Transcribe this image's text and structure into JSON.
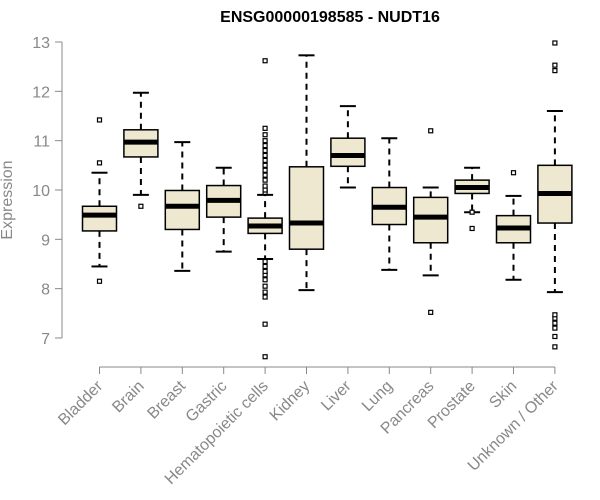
{
  "chart_data": {
    "type": "boxplot",
    "title": "ENSG00000198585 - NUDT16",
    "ylabel": "Expression",
    "xlabel": "",
    "ylim": [
      6.5,
      13
    ],
    "yticks": [
      7,
      8,
      9,
      10,
      11,
      12,
      13
    ],
    "colors": {
      "box_fill": "#EEE8D0",
      "axis": "#888888"
    },
    "categories": [
      "Bladder",
      "Brain",
      "Breast",
      "Gastric",
      "Hematopoietic cells",
      "Kidney",
      "Liver",
      "Lung",
      "Pancreas",
      "Prostate",
      "Skin",
      "Unknown / Other"
    ],
    "boxes": [
      {
        "q1": 9.17,
        "median": 9.49,
        "q3": 9.67,
        "whisker_low": 8.45,
        "whisker_high": 10.35,
        "outliers": [
          8.15,
          10.55,
          11.42
        ]
      },
      {
        "q1": 10.67,
        "median": 10.97,
        "q3": 11.22,
        "whisker_low": 9.9,
        "whisker_high": 11.97,
        "outliers": [
          9.67
        ]
      },
      {
        "q1": 9.2,
        "median": 9.67,
        "q3": 9.99,
        "whisker_low": 8.36,
        "whisker_high": 10.97,
        "outliers": []
      },
      {
        "q1": 9.45,
        "median": 9.79,
        "q3": 10.09,
        "whisker_low": 8.75,
        "whisker_high": 10.45,
        "outliers": []
      },
      {
        "q1": 9.12,
        "median": 9.27,
        "q3": 9.43,
        "whisker_low": 8.6,
        "whisker_high": 9.9,
        "outliers": [
          6.62,
          7.28,
          7.83,
          7.93,
          8.05,
          8.18,
          8.28,
          8.35,
          8.45,
          8.55,
          9.95,
          10.0,
          10.08,
          10.2,
          10.3,
          10.4,
          10.5,
          10.6,
          10.7,
          10.8,
          10.9,
          11.0,
          11.12,
          11.25,
          12.62
        ]
      },
      {
        "q1": 8.8,
        "median": 9.33,
        "q3": 10.47,
        "whisker_low": 7.97,
        "whisker_high": 12.73,
        "outliers": []
      },
      {
        "q1": 10.48,
        "median": 10.7,
        "q3": 11.05,
        "whisker_low": 10.05,
        "whisker_high": 11.7,
        "outliers": []
      },
      {
        "q1": 9.3,
        "median": 9.65,
        "q3": 10.05,
        "whisker_low": 8.38,
        "whisker_high": 11.05,
        "outliers": []
      },
      {
        "q1": 8.93,
        "median": 9.45,
        "q3": 9.85,
        "whisker_low": 8.27,
        "whisker_high": 10.05,
        "outliers": [
          7.52,
          11.2
        ]
      },
      {
        "q1": 9.93,
        "median": 10.05,
        "q3": 10.2,
        "whisker_low": 9.55,
        "whisker_high": 10.45,
        "outliers": [
          9.22,
          9.55
        ]
      },
      {
        "q1": 8.93,
        "median": 9.23,
        "q3": 9.48,
        "whisker_low": 8.18,
        "whisker_high": 9.88,
        "outliers": [
          10.35
        ]
      },
      {
        "q1": 9.33,
        "median": 9.93,
        "q3": 10.5,
        "whisker_low": 7.93,
        "whisker_high": 11.6,
        "outliers": [
          6.82,
          7.03,
          7.2,
          7.3,
          7.4,
          7.47,
          12.42,
          12.53,
          12.98
        ]
      }
    ],
    "grid": false,
    "legend": "none"
  }
}
